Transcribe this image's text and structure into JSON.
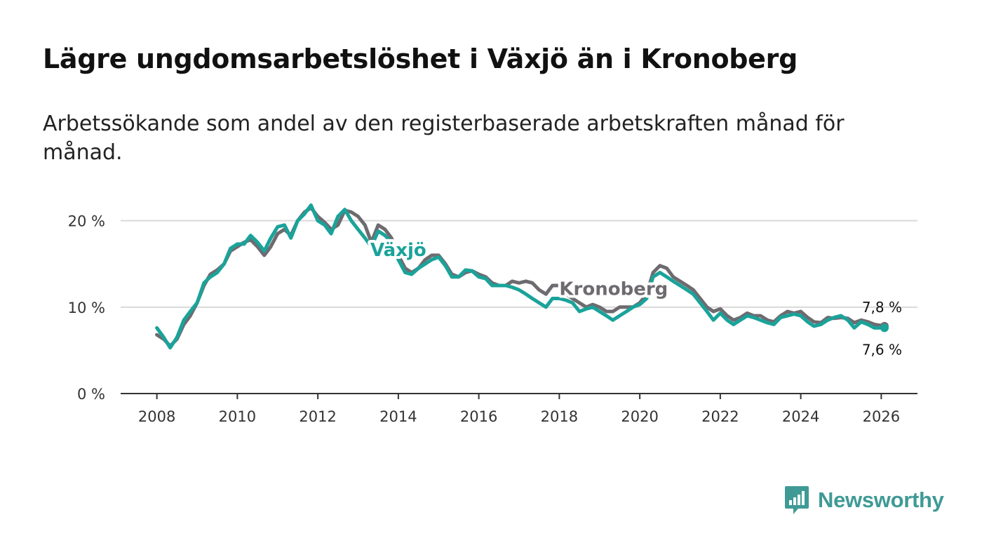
{
  "brand": {
    "name": "Newsworthy",
    "color": "#3f9a95"
  },
  "chart_data": {
    "type": "line",
    "title": "Lägre ungdomsarbetslöshet i Växjö än i Kronoberg",
    "subtitle": "Arbetssökande som andel av den registerbaserade arbetskraften månad för månad.",
    "xlabel": "",
    "ylabel": "",
    "xlim": [
      2007.1,
      2026.9
    ],
    "ylim": [
      0,
      22
    ],
    "x_ticks": [
      {
        "value": 2008,
        "label": "2008"
      },
      {
        "value": 2010,
        "label": "2010"
      },
      {
        "value": 2012,
        "label": "2012"
      },
      {
        "value": 2014,
        "label": "2014"
      },
      {
        "value": 2016,
        "label": "2016"
      },
      {
        "value": 2018,
        "label": "2018"
      },
      {
        "value": 2020,
        "label": "2020"
      },
      {
        "value": 2022,
        "label": "2022"
      },
      {
        "value": 2024,
        "label": "2024"
      },
      {
        "value": 2026,
        "label": "2026"
      }
    ],
    "y_ticks": [
      {
        "value": 0,
        "label": "0 %"
      },
      {
        "value": 10,
        "label": "10 %"
      },
      {
        "value": 20,
        "label": "20 %"
      }
    ],
    "grid": true,
    "series": [
      {
        "name": "Kronoberg",
        "color": "#6e6b70",
        "label": "Kronoberg",
        "end_label": "7,8 %",
        "points": [
          [
            2008.0,
            6.8
          ],
          [
            2008.17,
            6.3
          ],
          [
            2008.33,
            5.5
          ],
          [
            2008.5,
            6.3
          ],
          [
            2008.67,
            8.0
          ],
          [
            2008.83,
            9.0
          ],
          [
            2009.0,
            10.5
          ],
          [
            2009.17,
            12.5
          ],
          [
            2009.33,
            13.8
          ],
          [
            2009.5,
            14.3
          ],
          [
            2009.67,
            15.0
          ],
          [
            2009.83,
            16.5
          ],
          [
            2010.0,
            17.0
          ],
          [
            2010.17,
            17.5
          ],
          [
            2010.33,
            17.8
          ],
          [
            2010.5,
            17.0
          ],
          [
            2010.67,
            16.0
          ],
          [
            2010.83,
            17.0
          ],
          [
            2011.0,
            18.5
          ],
          [
            2011.17,
            19.0
          ],
          [
            2011.33,
            18.3
          ],
          [
            2011.5,
            20.0
          ],
          [
            2011.67,
            21.0
          ],
          [
            2011.83,
            21.5
          ],
          [
            2012.0,
            20.5
          ],
          [
            2012.17,
            19.8
          ],
          [
            2012.33,
            19.0
          ],
          [
            2012.5,
            19.5
          ],
          [
            2012.67,
            21.2
          ],
          [
            2012.83,
            21.0
          ],
          [
            2013.0,
            20.5
          ],
          [
            2013.17,
            19.5
          ],
          [
            2013.33,
            17.5
          ],
          [
            2013.5,
            19.5
          ],
          [
            2013.67,
            19.0
          ],
          [
            2013.83,
            18.0
          ],
          [
            2014.0,
            16.0
          ],
          [
            2014.17,
            14.5
          ],
          [
            2014.33,
            14.0
          ],
          [
            2014.5,
            14.5
          ],
          [
            2014.67,
            15.5
          ],
          [
            2014.83,
            16.0
          ],
          [
            2015.0,
            16.0
          ],
          [
            2015.17,
            15.0
          ],
          [
            2015.33,
            13.8
          ],
          [
            2015.5,
            13.5
          ],
          [
            2015.67,
            14.0
          ],
          [
            2015.83,
            14.2
          ],
          [
            2016.0,
            13.8
          ],
          [
            2016.17,
            13.5
          ],
          [
            2016.33,
            12.8
          ],
          [
            2016.5,
            12.5
          ],
          [
            2016.67,
            12.5
          ],
          [
            2016.83,
            13.0
          ],
          [
            2017.0,
            12.8
          ],
          [
            2017.17,
            13.0
          ],
          [
            2017.33,
            12.8
          ],
          [
            2017.5,
            12.0
          ],
          [
            2017.67,
            11.5
          ],
          [
            2017.83,
            12.5
          ],
          [
            2018.0,
            12.5
          ],
          [
            2018.17,
            11.5
          ],
          [
            2018.33,
            11.0
          ],
          [
            2018.5,
            10.5
          ],
          [
            2018.67,
            10.0
          ],
          [
            2018.83,
            10.3
          ],
          [
            2019.0,
            10.0
          ],
          [
            2019.17,
            9.5
          ],
          [
            2019.33,
            9.5
          ],
          [
            2019.5,
            10.0
          ],
          [
            2019.67,
            10.0
          ],
          [
            2019.83,
            10.0
          ],
          [
            2020.0,
            10.5
          ],
          [
            2020.17,
            11.5
          ],
          [
            2020.33,
            14.0
          ],
          [
            2020.5,
            14.8
          ],
          [
            2020.67,
            14.5
          ],
          [
            2020.83,
            13.5
          ],
          [
            2021.0,
            13.0
          ],
          [
            2021.17,
            12.5
          ],
          [
            2021.33,
            12.0
          ],
          [
            2021.5,
            11.0
          ],
          [
            2021.67,
            10.0
          ],
          [
            2021.83,
            9.5
          ],
          [
            2022.0,
            9.8
          ],
          [
            2022.17,
            9.0
          ],
          [
            2022.33,
            8.5
          ],
          [
            2022.5,
            8.8
          ],
          [
            2022.67,
            9.3
          ],
          [
            2022.83,
            9.0
          ],
          [
            2023.0,
            9.0
          ],
          [
            2023.17,
            8.5
          ],
          [
            2023.33,
            8.3
          ],
          [
            2023.5,
            9.0
          ],
          [
            2023.67,
            9.5
          ],
          [
            2023.83,
            9.3
          ],
          [
            2024.0,
            9.5
          ],
          [
            2024.17,
            8.8
          ],
          [
            2024.33,
            8.3
          ],
          [
            2024.5,
            8.2
          ],
          [
            2024.67,
            8.8
          ],
          [
            2024.83,
            8.7
          ],
          [
            2025.0,
            8.8
          ],
          [
            2025.17,
            8.7
          ],
          [
            2025.33,
            8.2
          ],
          [
            2025.5,
            8.5
          ],
          [
            2025.67,
            8.3
          ],
          [
            2025.83,
            8.0
          ],
          [
            2026.08,
            7.8
          ]
        ]
      },
      {
        "name": "Växjö",
        "color": "#1aa39a",
        "label": "Växjö",
        "end_label": "7,6 %",
        "points": [
          [
            2008.0,
            7.6
          ],
          [
            2008.17,
            6.5
          ],
          [
            2008.33,
            5.3
          ],
          [
            2008.5,
            6.5
          ],
          [
            2008.67,
            8.5
          ],
          [
            2008.83,
            9.5
          ],
          [
            2009.0,
            10.5
          ],
          [
            2009.17,
            12.8
          ],
          [
            2009.33,
            13.5
          ],
          [
            2009.5,
            14.0
          ],
          [
            2009.67,
            15.0
          ],
          [
            2009.83,
            16.8
          ],
          [
            2010.0,
            17.3
          ],
          [
            2010.17,
            17.3
          ],
          [
            2010.33,
            18.3
          ],
          [
            2010.5,
            17.5
          ],
          [
            2010.67,
            16.5
          ],
          [
            2010.83,
            18.0
          ],
          [
            2011.0,
            19.3
          ],
          [
            2011.17,
            19.5
          ],
          [
            2011.33,
            18.0
          ],
          [
            2011.5,
            20.0
          ],
          [
            2011.67,
            20.8
          ],
          [
            2011.83,
            21.8
          ],
          [
            2012.0,
            20.0
          ],
          [
            2012.17,
            19.5
          ],
          [
            2012.33,
            18.5
          ],
          [
            2012.5,
            20.5
          ],
          [
            2012.67,
            21.3
          ],
          [
            2012.83,
            20.0
          ],
          [
            2013.0,
            19.0
          ],
          [
            2013.17,
            18.0
          ],
          [
            2013.33,
            17.0
          ],
          [
            2013.5,
            18.8
          ],
          [
            2013.67,
            18.3
          ],
          [
            2013.83,
            17.5
          ],
          [
            2014.0,
            15.5
          ],
          [
            2014.17,
            14.0
          ],
          [
            2014.33,
            13.8
          ],
          [
            2014.5,
            14.5
          ],
          [
            2014.67,
            15.0
          ],
          [
            2014.83,
            15.5
          ],
          [
            2015.0,
            15.8
          ],
          [
            2015.17,
            14.8
          ],
          [
            2015.33,
            13.5
          ],
          [
            2015.5,
            13.5
          ],
          [
            2015.67,
            14.3
          ],
          [
            2015.83,
            14.2
          ],
          [
            2016.0,
            13.5
          ],
          [
            2016.17,
            13.3
          ],
          [
            2016.33,
            12.5
          ],
          [
            2016.5,
            12.5
          ],
          [
            2016.67,
            12.5
          ],
          [
            2016.83,
            12.3
          ],
          [
            2017.0,
            12.0
          ],
          [
            2017.17,
            11.5
          ],
          [
            2017.33,
            11.0
          ],
          [
            2017.5,
            10.5
          ],
          [
            2017.67,
            10.0
          ],
          [
            2017.83,
            11.0
          ],
          [
            2018.0,
            11.0
          ],
          [
            2018.17,
            10.8
          ],
          [
            2018.33,
            10.5
          ],
          [
            2018.5,
            9.5
          ],
          [
            2018.67,
            9.8
          ],
          [
            2018.83,
            10.0
          ],
          [
            2019.0,
            9.5
          ],
          [
            2019.17,
            9.0
          ],
          [
            2019.33,
            8.5
          ],
          [
            2019.5,
            9.0
          ],
          [
            2019.67,
            9.5
          ],
          [
            2019.83,
            10.0
          ],
          [
            2020.0,
            10.3
          ],
          [
            2020.17,
            11.0
          ],
          [
            2020.33,
            13.5
          ],
          [
            2020.5,
            14.0
          ],
          [
            2020.67,
            13.5
          ],
          [
            2020.83,
            13.0
          ],
          [
            2021.0,
            12.5
          ],
          [
            2021.17,
            12.0
          ],
          [
            2021.33,
            11.5
          ],
          [
            2021.5,
            10.5
          ],
          [
            2021.67,
            9.5
          ],
          [
            2021.83,
            8.5
          ],
          [
            2022.0,
            9.3
          ],
          [
            2022.17,
            8.5
          ],
          [
            2022.33,
            8.0
          ],
          [
            2022.5,
            8.5
          ],
          [
            2022.67,
            9.0
          ],
          [
            2022.83,
            8.8
          ],
          [
            2023.0,
            8.5
          ],
          [
            2023.17,
            8.2
          ],
          [
            2023.33,
            8.0
          ],
          [
            2023.5,
            8.8
          ],
          [
            2023.67,
            9.0
          ],
          [
            2023.83,
            9.2
          ],
          [
            2024.0,
            9.0
          ],
          [
            2024.17,
            8.3
          ],
          [
            2024.33,
            7.8
          ],
          [
            2024.5,
            8.0
          ],
          [
            2024.67,
            8.5
          ],
          [
            2024.83,
            8.8
          ],
          [
            2025.0,
            9.0
          ],
          [
            2025.17,
            8.5
          ],
          [
            2025.33,
            7.6
          ],
          [
            2025.5,
            8.3
          ],
          [
            2025.67,
            8.0
          ],
          [
            2025.83,
            7.6
          ],
          [
            2026.08,
            7.6
          ]
        ]
      }
    ],
    "annotations": [
      {
        "series": "Växjö",
        "text": "Växjö",
        "x": 2014.0,
        "y": 15.9
      },
      {
        "series": "Kronoberg",
        "text": "Kronoberg",
        "x": 2019.35,
        "y": 11.4
      }
    ]
  }
}
